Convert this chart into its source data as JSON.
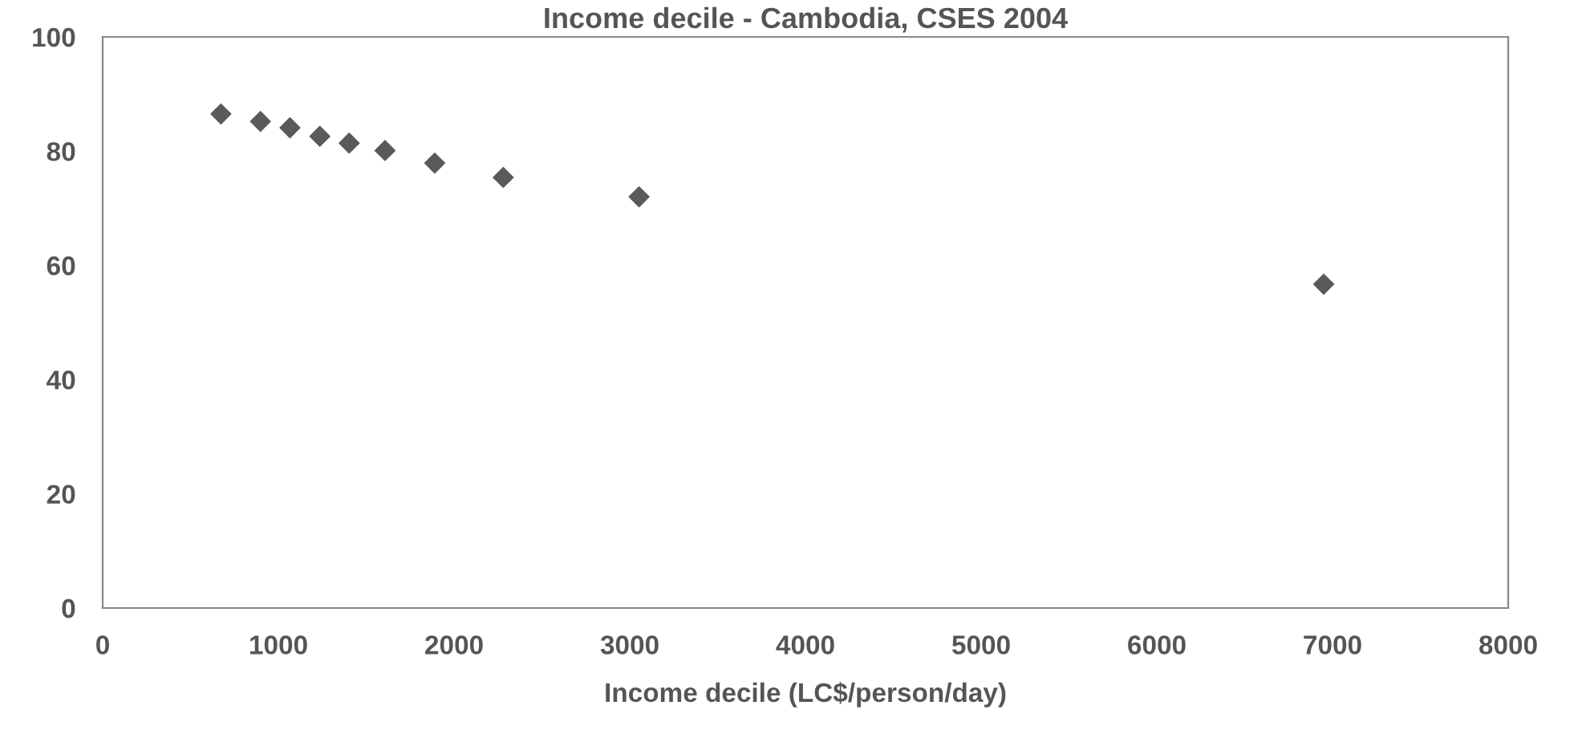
{
  "chart_data": {
    "type": "scatter",
    "title": "Income decile - Cambodia, CSES 2004",
    "xlabel": "Income decile (LC$/person/day)",
    "x": [
      673,
      898,
      1066,
      1236,
      1403,
      1607,
      1890,
      2280,
      3053,
      6950
    ],
    "series": [
      {
        "color": "#5a5a5a",
        "values": [
          86.5,
          85.2,
          84.1,
          82.6,
          81.4,
          80.1,
          77.9,
          75.4,
          72.0,
          56.7
        ]
      }
    ],
    "xlim": [
      0,
      8000
    ],
    "xticks": [
      0,
      1000,
      2000,
      3000,
      4000,
      5000,
      6000,
      7000,
      8000
    ],
    "ylim": [
      0,
      100
    ],
    "yticks": [
      0,
      20,
      40,
      60,
      80,
      100
    ],
    "marker": "diamond",
    "grid": false
  }
}
